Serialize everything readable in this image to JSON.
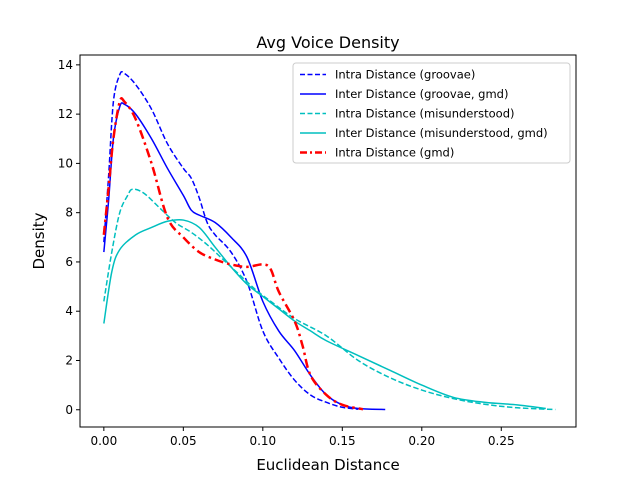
{
  "chart_data": {
    "type": "line",
    "title": "Avg Voice Density",
    "xlabel": "Euclidean Distance",
    "ylabel": "Density",
    "xlim": [
      -0.015,
      0.297
    ],
    "ylim": [
      -0.7,
      14.4
    ],
    "xticks": [
      0.0,
      0.05,
      0.1,
      0.15,
      0.2,
      0.25
    ],
    "xtick_labels": [
      "0.00",
      "0.05",
      "0.10",
      "0.15",
      "0.20",
      "0.25"
    ],
    "yticks": [
      0,
      2,
      4,
      6,
      8,
      10,
      12,
      14
    ],
    "ytick_labels": [
      "0",
      "2",
      "4",
      "6",
      "8",
      "10",
      "12",
      "14"
    ],
    "grid": false,
    "legend_position": "top-right",
    "series": [
      {
        "name": "Intra Distance (groovae)",
        "color": "#0000ff",
        "dash": "dashed",
        "width": 1.5,
        "points": [
          [
            0.0,
            6.8
          ],
          [
            0.003,
            9.5
          ],
          [
            0.006,
            12.5
          ],
          [
            0.01,
            13.6
          ],
          [
            0.013,
            13.65
          ],
          [
            0.02,
            13.2
          ],
          [
            0.03,
            12.2
          ],
          [
            0.04,
            10.8
          ],
          [
            0.05,
            9.8
          ],
          [
            0.055,
            9.4
          ],
          [
            0.06,
            8.6
          ],
          [
            0.065,
            7.6
          ],
          [
            0.07,
            7.1
          ],
          [
            0.08,
            6.4
          ],
          [
            0.09,
            5.2
          ],
          [
            0.1,
            3.2
          ],
          [
            0.11,
            2.1
          ],
          [
            0.12,
            1.2
          ],
          [
            0.13,
            0.6
          ],
          [
            0.14,
            0.3
          ],
          [
            0.15,
            0.1
          ],
          [
            0.16,
            0.02
          ]
        ]
      },
      {
        "name": "Inter Distance (groovae, gmd)",
        "color": "#0000ff",
        "dash": "solid",
        "width": 1.5,
        "points": [
          [
            0.0,
            6.4
          ],
          [
            0.003,
            8.5
          ],
          [
            0.006,
            11.0
          ],
          [
            0.01,
            12.3
          ],
          [
            0.013,
            12.4
          ],
          [
            0.02,
            12.0
          ],
          [
            0.03,
            11.0
          ],
          [
            0.04,
            9.8
          ],
          [
            0.05,
            8.7
          ],
          [
            0.055,
            8.1
          ],
          [
            0.06,
            7.9
          ],
          [
            0.07,
            7.6
          ],
          [
            0.08,
            7.0
          ],
          [
            0.09,
            6.2
          ],
          [
            0.1,
            4.4
          ],
          [
            0.11,
            3.2
          ],
          [
            0.12,
            2.4
          ],
          [
            0.13,
            1.4
          ],
          [
            0.14,
            0.6
          ],
          [
            0.15,
            0.2
          ],
          [
            0.16,
            0.05
          ],
          [
            0.177,
            0.01
          ]
        ]
      },
      {
        "name": "Intra Distance (misunderstood)",
        "color": "#00bfbf",
        "dash": "dashed",
        "width": 1.5,
        "points": [
          [
            0.0,
            4.4
          ],
          [
            0.005,
            6.4
          ],
          [
            0.01,
            8.0
          ],
          [
            0.015,
            8.7
          ],
          [
            0.018,
            8.95
          ],
          [
            0.025,
            8.8
          ],
          [
            0.035,
            8.2
          ],
          [
            0.045,
            7.6
          ],
          [
            0.055,
            7.2
          ],
          [
            0.065,
            6.7
          ],
          [
            0.075,
            6.1
          ],
          [
            0.085,
            5.5
          ],
          [
            0.095,
            4.9
          ],
          [
            0.105,
            4.4
          ],
          [
            0.12,
            3.7
          ],
          [
            0.14,
            3.0
          ],
          [
            0.16,
            2.0
          ],
          [
            0.18,
            1.3
          ],
          [
            0.2,
            0.8
          ],
          [
            0.22,
            0.45
          ],
          [
            0.24,
            0.22
          ],
          [
            0.26,
            0.08
          ],
          [
            0.284,
            0.01
          ]
        ]
      },
      {
        "name": "Inter Distance (misunderstood, gmd)",
        "color": "#00bfbf",
        "dash": "solid",
        "width": 1.5,
        "points": [
          [
            0.0,
            3.5
          ],
          [
            0.005,
            5.6
          ],
          [
            0.01,
            6.5
          ],
          [
            0.02,
            7.1
          ],
          [
            0.03,
            7.4
          ],
          [
            0.04,
            7.65
          ],
          [
            0.05,
            7.7
          ],
          [
            0.06,
            7.4
          ],
          [
            0.07,
            6.6
          ],
          [
            0.08,
            5.8
          ],
          [
            0.09,
            5.1
          ],
          [
            0.1,
            4.6
          ],
          [
            0.11,
            4.1
          ],
          [
            0.12,
            3.6
          ],
          [
            0.13,
            3.2
          ],
          [
            0.14,
            2.8
          ],
          [
            0.16,
            2.2
          ],
          [
            0.18,
            1.6
          ],
          [
            0.2,
            1.0
          ],
          [
            0.22,
            0.5
          ],
          [
            0.24,
            0.3
          ],
          [
            0.26,
            0.2
          ],
          [
            0.278,
            0.05
          ]
        ]
      },
      {
        "name": "Intra Distance (gmd)",
        "color": "#ff0000",
        "dash": "dashdot",
        "width": 2.5,
        "points": [
          [
            0.0,
            7.1
          ],
          [
            0.003,
            9.0
          ],
          [
            0.006,
            11.0
          ],
          [
            0.01,
            12.5
          ],
          [
            0.013,
            12.5
          ],
          [
            0.02,
            11.8
          ],
          [
            0.03,
            10.0
          ],
          [
            0.04,
            7.8
          ],
          [
            0.05,
            7.0
          ],
          [
            0.06,
            6.4
          ],
          [
            0.07,
            6.1
          ],
          [
            0.08,
            5.9
          ],
          [
            0.09,
            5.8
          ],
          [
            0.1,
            5.9
          ],
          [
            0.105,
            5.7
          ],
          [
            0.11,
            4.8
          ],
          [
            0.12,
            3.6
          ],
          [
            0.125,
            2.6
          ],
          [
            0.13,
            1.4
          ],
          [
            0.14,
            0.6
          ],
          [
            0.15,
            0.2
          ],
          [
            0.163,
            0.02
          ]
        ]
      }
    ]
  }
}
